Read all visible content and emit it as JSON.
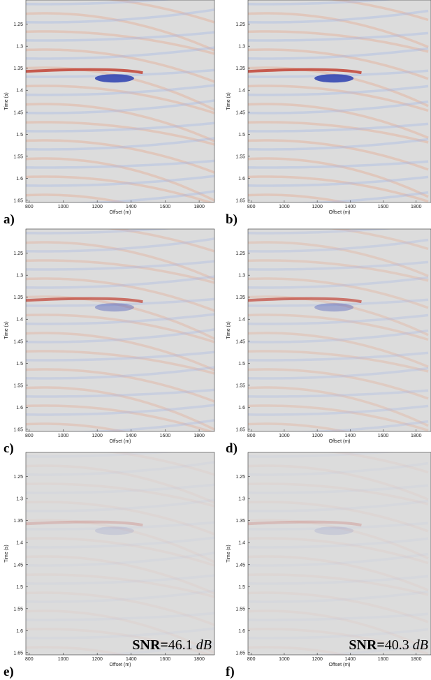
{
  "chart_data": [
    {
      "type": "image",
      "panel_label": "a)",
      "xlabel": "Offset (m)",
      "ylabel": "Time (s)",
      "xlim": [
        780,
        1890
      ],
      "ylim": [
        1.655,
        1.195
      ],
      "xticks": [
        800,
        1000,
        1200,
        1400,
        1600,
        1800
      ],
      "yticks": [
        1.25,
        1.3,
        1.35,
        1.4,
        1.45,
        1.5,
        1.55,
        1.6,
        1.65
      ]
    },
    {
      "type": "image",
      "panel_label": "b)",
      "xlabel": "Offset (m)",
      "ylabel": "Time (s)",
      "xlim": [
        780,
        1890
      ],
      "ylim": [
        1.655,
        1.195
      ],
      "xticks": [
        800,
        1000,
        1200,
        1400,
        1600,
        1800
      ],
      "yticks": [
        1.25,
        1.3,
        1.35,
        1.4,
        1.45,
        1.5,
        1.55,
        1.6,
        1.65
      ]
    },
    {
      "type": "image",
      "panel_label": "c)",
      "xlabel": "Offset (m)",
      "ylabel": "Time (s)",
      "xlim": [
        780,
        1890
      ],
      "ylim": [
        1.655,
        1.195
      ],
      "xticks": [
        800,
        1000,
        1200,
        1400,
        1600,
        1800
      ],
      "yticks": [
        1.25,
        1.3,
        1.35,
        1.4,
        1.45,
        1.5,
        1.55,
        1.6,
        1.65
      ]
    },
    {
      "type": "image",
      "panel_label": "d)",
      "xlabel": "Offset (m)",
      "ylabel": "Time (s)",
      "xlim": [
        780,
        1890
      ],
      "ylim": [
        1.655,
        1.195
      ],
      "xticks": [
        800,
        1000,
        1200,
        1400,
        1600,
        1800
      ],
      "yticks": [
        1.25,
        1.3,
        1.35,
        1.4,
        1.45,
        1.5,
        1.55,
        1.6,
        1.65
      ]
    },
    {
      "type": "image",
      "panel_label": "e)",
      "xlabel": "Offset (m)",
      "ylabel": "Time (s)",
      "xlim": [
        780,
        1890
      ],
      "ylim": [
        1.655,
        1.195
      ],
      "xticks": [
        800,
        1000,
        1200,
        1400,
        1600,
        1800
      ],
      "yticks": [
        1.25,
        1.3,
        1.35,
        1.4,
        1.45,
        1.5,
        1.55,
        1.6,
        1.65
      ],
      "annotation": {
        "label": "SNR=",
        "value": 46.1,
        "unit": "dB"
      }
    },
    {
      "type": "image",
      "panel_label": "f)",
      "xlabel": "Offset (m)",
      "ylabel": "Time (s)",
      "xlim": [
        780,
        1890
      ],
      "ylim": [
        1.655,
        1.195
      ],
      "xticks": [
        800,
        1000,
        1200,
        1400,
        1600,
        1800
      ],
      "yticks": [
        1.25,
        1.3,
        1.35,
        1.4,
        1.45,
        1.5,
        1.55,
        1.6,
        1.65
      ],
      "annotation": {
        "label": "SNR=",
        "value": 40.3,
        "unit": "dB"
      }
    }
  ]
}
